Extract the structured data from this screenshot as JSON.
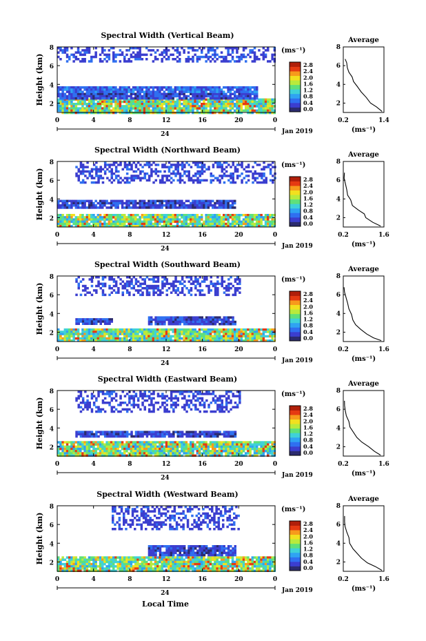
{
  "shared": {
    "date_label": "Jan 2019",
    "day_label": "24",
    "xlabel": "Local Time",
    "ylabel": "Height (km)",
    "colorbar_unit": "(ms⁻¹)",
    "avg_title": "Average",
    "avg_xlabel": "(ms⁻¹)"
  },
  "colorbar": {
    "ticks": [
      "0.0",
      "0.4",
      "0.8",
      "1.2",
      "1.6",
      "2.0",
      "2.4",
      "2.8"
    ],
    "colors": [
      "#2b2b6e",
      "#3b3ecf",
      "#2f6ff0",
      "#2fa3f2",
      "#3fd1d8",
      "#5fe07a",
      "#b9ea3c",
      "#f2e01f",
      "#f79a1c",
      "#e53a12",
      "#b01f0a"
    ]
  },
  "chart_data": [
    {
      "type": "heatmap",
      "title": "Spectral Width (Vertical Beam)",
      "xticks": [
        "0",
        "4",
        "8",
        "12",
        "16",
        "20",
        "0"
      ],
      "yticks": [
        "2",
        "4",
        "6",
        "8"
      ],
      "x_range_hours": [
        0,
        24
      ],
      "y_range_km": [
        1,
        8
      ],
      "bands": [
        {
          "y": [
            1.0,
            2.5
          ],
          "x": [
            0,
            24
          ],
          "level": "high"
        },
        {
          "y": [
            2.5,
            3.1
          ],
          "x": [
            0,
            22
          ],
          "level": "low"
        },
        {
          "y": [
            3.1,
            3.8
          ],
          "x": [
            0,
            22
          ],
          "level": "medium-low"
        },
        {
          "y": [
            6.5,
            8.0
          ],
          "x": [
            0,
            24
          ],
          "level": "sparse-low"
        }
      ],
      "average": {
        "xticks": [
          "0.2",
          "1.4"
        ],
        "xlim": [
          0.2,
          1.4
        ],
        "yticks": [
          "2",
          "4",
          "6",
          "8"
        ],
        "profile": [
          [
            1.35,
            1.1
          ],
          [
            1.2,
            1.6
          ],
          [
            1.0,
            2.0
          ],
          [
            0.85,
            2.6
          ],
          [
            0.7,
            3.2
          ],
          [
            0.6,
            3.8
          ],
          [
            0.5,
            4.3
          ],
          [
            0.45,
            4.8
          ],
          [
            0.35,
            5.3
          ],
          [
            0.3,
            5.8
          ],
          [
            0.28,
            6.3
          ],
          [
            0.27,
            6.7
          ]
        ]
      }
    },
    {
      "type": "heatmap",
      "title": "Spectral Width (Northward Beam)",
      "xticks": [
        "0",
        "4",
        "8",
        "12",
        "16",
        "20",
        "0"
      ],
      "yticks": [
        "2",
        "4",
        "6",
        "8"
      ],
      "x_range_hours": [
        0,
        24
      ],
      "y_range_km": [
        1,
        8
      ],
      "bands": [
        {
          "y": [
            1.0,
            2.4
          ],
          "x": [
            0,
            24
          ],
          "level": "high"
        },
        {
          "y": [
            3.0,
            3.9
          ],
          "x": [
            0,
            19.5
          ],
          "level": "low"
        },
        {
          "y": [
            5.7,
            8.0
          ],
          "x": [
            2,
            24
          ],
          "level": "sparse-low"
        }
      ],
      "average": {
        "xticks": [
          "0.2",
          "1.6"
        ],
        "xlim": [
          0.2,
          1.6
        ],
        "yticks": [
          "2",
          "4",
          "6",
          "8"
        ],
        "profile": [
          [
            1.5,
            1.1
          ],
          [
            1.2,
            1.5
          ],
          [
            1.0,
            2.0
          ],
          [
            0.9,
            2.4
          ],
          [
            0.7,
            2.8
          ],
          [
            0.5,
            3.3
          ],
          [
            0.45,
            3.9
          ],
          [
            0.35,
            4.4
          ],
          [
            0.3,
            5.0
          ],
          [
            0.27,
            5.6
          ],
          [
            0.25,
            6.2
          ],
          [
            0.24,
            6.8
          ]
        ]
      }
    },
    {
      "type": "heatmap",
      "title": "Spectral Width (Southward Beam)",
      "xticks": [
        "0",
        "4",
        "8",
        "12",
        "16",
        "20",
        "0"
      ],
      "yticks": [
        "2",
        "4",
        "6",
        "8"
      ],
      "x_range_hours": [
        0,
        24
      ],
      "y_range_km": [
        1,
        8
      ],
      "bands": [
        {
          "y": [
            1.0,
            2.4
          ],
          "x": [
            0,
            24
          ],
          "level": "high"
        },
        {
          "y": [
            2.9,
            3.7
          ],
          "x": [
            10,
            19.5
          ],
          "level": "low"
        },
        {
          "y": [
            3.0,
            3.5
          ],
          "x": [
            2,
            6
          ],
          "level": "low"
        },
        {
          "y": [
            5.9,
            8.0
          ],
          "x": [
            2,
            20
          ],
          "level": "sparse-low"
        }
      ],
      "average": {
        "xticks": [
          "0.2",
          "1.6"
        ],
        "xlim": [
          0.2,
          1.6
        ],
        "yticks": [
          "2",
          "4",
          "6",
          "8"
        ],
        "profile": [
          [
            1.5,
            1.1
          ],
          [
            1.25,
            1.4
          ],
          [
            1.0,
            1.8
          ],
          [
            0.8,
            2.3
          ],
          [
            0.65,
            2.8
          ],
          [
            0.55,
            3.3
          ],
          [
            0.45,
            3.9
          ],
          [
            0.38,
            4.5
          ],
          [
            0.32,
            5.1
          ],
          [
            0.28,
            5.7
          ],
          [
            0.26,
            6.3
          ],
          [
            0.25,
            6.8
          ]
        ]
      }
    },
    {
      "type": "heatmap",
      "title": "Spectral Width (Eastward Beam)",
      "xticks": [
        "0",
        "4",
        "8",
        "12",
        "16",
        "20",
        "0"
      ],
      "yticks": [
        "2",
        "4",
        "6",
        "8"
      ],
      "x_range_hours": [
        0,
        24
      ],
      "y_range_km": [
        1,
        8
      ],
      "bands": [
        {
          "y": [
            1.0,
            2.6
          ],
          "x": [
            0,
            24
          ],
          "level": "high"
        },
        {
          "y": [
            3.0,
            3.7
          ],
          "x": [
            2,
            19.5
          ],
          "level": "low"
        },
        {
          "y": [
            5.8,
            8.0
          ],
          "x": [
            2,
            20
          ],
          "level": "sparse-low"
        }
      ],
      "average": {
        "xticks": [
          "0.2",
          "1.6"
        ],
        "xlim": [
          0.2,
          1.6
        ],
        "yticks": [
          "2",
          "4",
          "6",
          "8"
        ],
        "profile": [
          [
            1.5,
            1.1
          ],
          [
            1.3,
            1.5
          ],
          [
            1.05,
            2.0
          ],
          [
            0.85,
            2.5
          ],
          [
            0.7,
            3.0
          ],
          [
            0.55,
            3.5
          ],
          [
            0.45,
            4.1
          ],
          [
            0.38,
            4.7
          ],
          [
            0.32,
            5.3
          ],
          [
            0.28,
            5.9
          ],
          [
            0.26,
            6.4
          ],
          [
            0.25,
            6.9
          ]
        ]
      }
    },
    {
      "type": "heatmap",
      "title": "Spectral Width (Westward Beam)",
      "xticks": [
        "0",
        "4",
        "8",
        "12",
        "16",
        "20",
        "0"
      ],
      "yticks": [
        "2",
        "4",
        "6",
        "8"
      ],
      "x_range_hours": [
        0,
        24
      ],
      "y_range_km": [
        1,
        8
      ],
      "bands": [
        {
          "y": [
            1.0,
            2.6
          ],
          "x": [
            0,
            24
          ],
          "level": "high"
        },
        {
          "y": [
            2.8,
            3.8
          ],
          "x": [
            10,
            19.5
          ],
          "level": "low"
        },
        {
          "y": [
            5.5,
            8.0
          ],
          "x": [
            6,
            20
          ],
          "level": "sparse-low"
        }
      ],
      "average": {
        "xticks": [
          "0.2",
          "1.6"
        ],
        "xlim": [
          0.2,
          1.6
        ],
        "yticks": [
          "2",
          "4",
          "6",
          "8"
        ],
        "profile": [
          [
            1.5,
            1.1
          ],
          [
            1.3,
            1.5
          ],
          [
            1.05,
            1.9
          ],
          [
            0.85,
            2.4
          ],
          [
            0.65,
            2.9
          ],
          [
            0.55,
            3.4
          ],
          [
            0.45,
            4.0
          ],
          [
            0.38,
            4.6
          ],
          [
            0.32,
            5.2
          ],
          [
            0.28,
            5.8
          ],
          [
            0.26,
            6.3
          ],
          [
            0.25,
            6.9
          ]
        ]
      }
    }
  ]
}
